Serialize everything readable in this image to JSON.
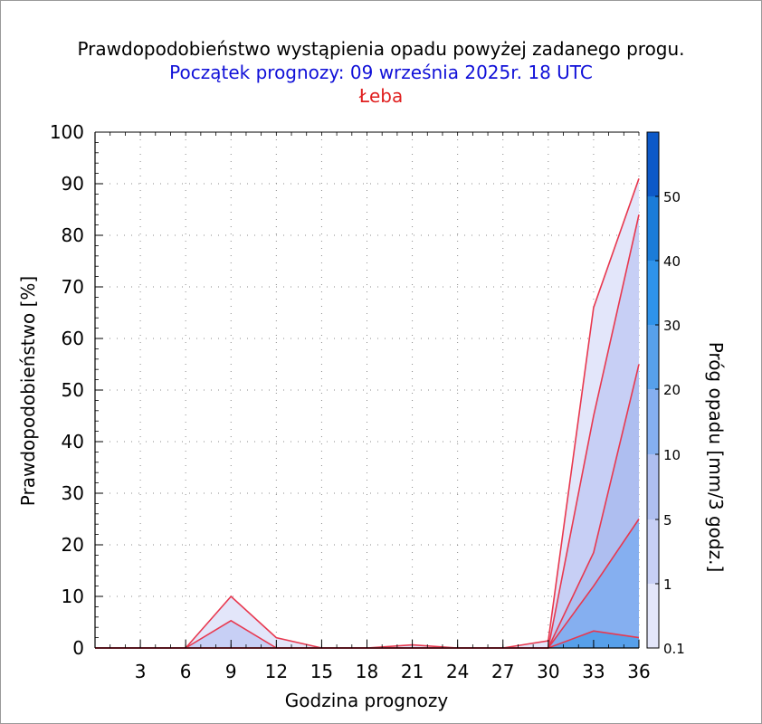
{
  "title": "Prawdopodobieństwo wystąpienia opadu powyżej zadanego progu.",
  "subtitle": "Początek prognozy: 09 września 2025r. 18 UTC",
  "location": "Łeba",
  "colors": {
    "title": "#000000",
    "subtitle": "#1010d8",
    "location": "#e02020",
    "series_line": "#e8384f",
    "thresholds": [
      "#e3e6fa",
      "#c7cff5",
      "#aebef0",
      "#85aff0",
      "#57a0ea",
      "#2f93ea",
      "#1b7cd8",
      "#0d59c8",
      "#0840a8"
    ]
  },
  "chart_data": {
    "type": "area",
    "xlabel": "Godzina prognozy",
    "ylabel": "Prawdopodobieństwo [%]",
    "colorbar_label": "Próg opadu [mm/3 godz.]",
    "xlim": [
      0,
      36
    ],
    "ylim": [
      0,
      100
    ],
    "x_ticks": [
      "3",
      "6",
      "9",
      "12",
      "15",
      "18",
      "21",
      "24",
      "27",
      "30",
      "33",
      "36"
    ],
    "y_ticks": [
      "0",
      "10",
      "20",
      "30",
      "40",
      "50",
      "60",
      "70",
      "80",
      "90",
      "100"
    ],
    "colorbar_ticks": [
      "0.1",
      "1",
      "5",
      "10",
      "20",
      "30",
      "40",
      "50"
    ],
    "grid": true,
    "x": [
      0,
      3,
      6,
      9,
      12,
      15,
      18,
      21,
      24,
      27,
      30,
      33,
      36
    ],
    "series": [
      {
        "threshold": "0.1",
        "values": [
          0,
          0,
          0,
          10,
          2,
          0,
          0,
          0.6,
          0,
          0,
          1.4,
          66,
          91
        ]
      },
      {
        "threshold": "1",
        "values": [
          0,
          0,
          0,
          5.3,
          0,
          0,
          0,
          0,
          0,
          0,
          0,
          45,
          84
        ]
      },
      {
        "threshold": "5",
        "values": [
          0,
          0,
          0,
          0,
          0,
          0,
          0,
          0,
          0,
          0,
          0,
          18.5,
          55
        ]
      },
      {
        "threshold": "10",
        "values": [
          0,
          0,
          0,
          0,
          0,
          0,
          0,
          0,
          0,
          0,
          0,
          12,
          25
        ]
      },
      {
        "threshold": "20",
        "values": [
          0,
          0,
          0,
          0,
          0,
          0,
          0,
          0,
          0,
          0,
          0,
          3.3,
          2
        ]
      }
    ]
  }
}
